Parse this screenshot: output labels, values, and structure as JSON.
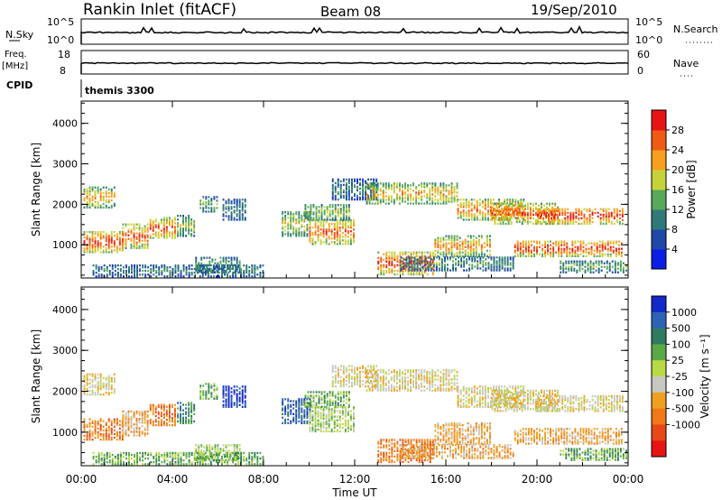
{
  "header": {
    "station": "Rankin Inlet (fitACF)",
    "beam": "Beam 08",
    "date": "19/Sep/2010"
  },
  "top_panels": {
    "nsky_label": "N.Sky",
    "nsky_ticks": [
      "10^5",
      "10^0"
    ],
    "nsearch_label": "N.Search",
    "nsearch_ticks": [
      "10^5",
      "10^0"
    ],
    "freq_label": "Freq.",
    "freq_unit": "[MHz]",
    "freq_ticks": [
      "18",
      "8"
    ],
    "nave_label": "Nave",
    "nave_ticks": [
      "60",
      "0"
    ],
    "cpid_label": "CPID",
    "cpid_value": "themis 3300"
  },
  "chart_data": [
    {
      "type": "heatmap",
      "name": "power",
      "ylabel": "Slant Range [km]",
      "ylim": [
        180,
        4550
      ],
      "yticks": [
        "1000",
        "2000",
        "3000",
        "4000"
      ],
      "xlabel": "Time UT",
      "xticks": [
        "00:00",
        "04:00",
        "08:00",
        "12:00",
        "16:00",
        "20:00",
        "00:00"
      ],
      "colorbar_label": "Power [dB]",
      "colorbar_ticks": [
        "4",
        "8",
        "12",
        "16",
        "20",
        "24",
        "28"
      ],
      "colors": [
        "#0b1ee6",
        "#1f48a8",
        "#2f7a78",
        "#58a85a",
        "#c7d23a",
        "#f7a01f",
        "#f05a14",
        "#e81414"
      ]
    },
    {
      "type": "heatmap",
      "name": "velocity",
      "ylabel": "Slant Range [km]",
      "ylim": [
        180,
        4550
      ],
      "yticks": [
        "1000",
        "2000",
        "3000",
        "4000"
      ],
      "xlabel": "Time UT",
      "xticks": [
        "00:00",
        "04:00",
        "08:00",
        "12:00",
        "16:00",
        "20:00",
        "00:00"
      ],
      "colorbar_label": "Velocity [m s⁻¹]",
      "colorbar_ticks": [
        "1000",
        "500",
        "100",
        "25",
        "-25",
        "-100",
        "-500",
        "-1000"
      ],
      "colors": [
        "#1228c8",
        "#2d63b4",
        "#2f7a60",
        "#5aa846",
        "#b8d844",
        "#c8c8c0",
        "#f0a020",
        "#f07818",
        "#e84818",
        "#e81414"
      ]
    }
  ]
}
